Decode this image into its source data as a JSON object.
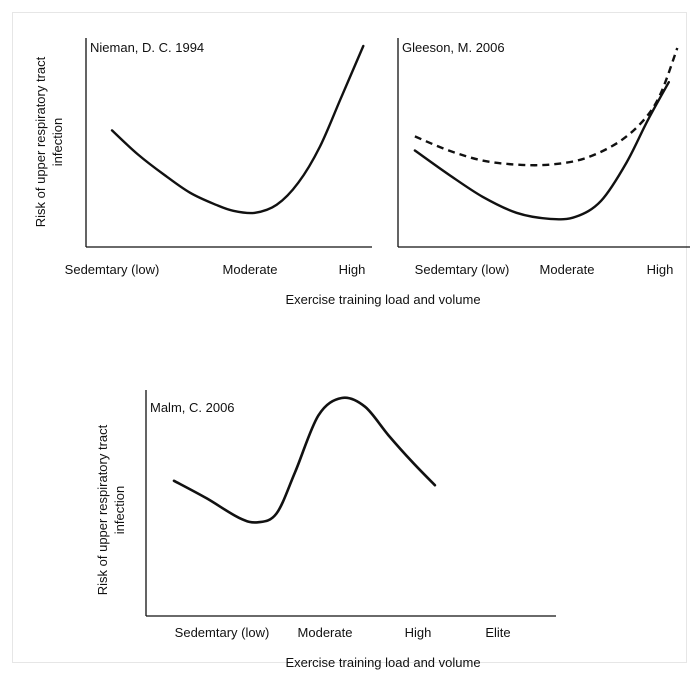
{
  "figure": {
    "shared_xlabel_top": "Exercise training load and volume",
    "ylabel_top": [
      "Risk of upper respiratory tract",
      "infection"
    ]
  },
  "chart_data": [
    {
      "type": "line",
      "title": "Nieman, D. C. 1994",
      "xlabel": "Exercise training load and volume",
      "ylabel": "Risk of upper respiratory tract infection",
      "categories": [
        "Sedemtary (low)",
        "Moderate",
        "High"
      ],
      "ylim": [
        0,
        10
      ],
      "grid": false,
      "series": [
        {
          "style": "solid",
          "x": [
            0.3,
            0.6,
            0.9,
            1.2,
            1.5,
            1.7,
            1.95,
            2.2,
            2.45,
            2.7,
            2.95,
            3.2
          ],
          "y": [
            5.8,
            4.6,
            3.6,
            2.7,
            2.1,
            1.8,
            1.7,
            2.1,
            3.2,
            5.0,
            7.5,
            10.0
          ]
        }
      ]
    },
    {
      "type": "line",
      "title": "Gleeson, M. 2006",
      "xlabel": "Exercise training load and volume",
      "ylabel": "",
      "categories": [
        "Sedemtary (low)",
        "Moderate",
        "High"
      ],
      "ylim": [
        0,
        10
      ],
      "grid": false,
      "series": [
        {
          "style": "solid",
          "x": [
            0.2,
            0.6,
            1.0,
            1.4,
            1.8,
            2.1,
            2.4,
            2.7,
            2.95,
            3.2
          ],
          "y": [
            4.8,
            3.6,
            2.5,
            1.7,
            1.4,
            1.5,
            2.3,
            4.2,
            6.3,
            8.2
          ]
        },
        {
          "style": "dashed",
          "x": [
            0.2,
            0.6,
            1.0,
            1.4,
            1.8,
            2.2,
            2.6,
            2.9,
            3.1,
            3.3
          ],
          "y": [
            5.5,
            4.8,
            4.3,
            4.1,
            4.1,
            4.4,
            5.2,
            6.3,
            7.6,
            9.9
          ]
        }
      ]
    },
    {
      "type": "line",
      "title": "Malm, C. 2006",
      "xlabel": "Exercise training load and volume",
      "ylabel": "Risk of upper respiratory tract infection",
      "categories": [
        "Sedemtary (low)",
        "Moderate",
        "High",
        "Elite"
      ],
      "ylim": [
        0,
        10
      ],
      "grid": false,
      "series": [
        {
          "style": "solid",
          "x": [
            0.3,
            0.65,
            1.0,
            1.2,
            1.4,
            1.6,
            1.85,
            2.1,
            2.35,
            2.6,
            2.85,
            3.1
          ],
          "y": [
            6.2,
            5.4,
            4.5,
            4.3,
            4.7,
            6.6,
            9.2,
            10.0,
            9.6,
            8.3,
            7.1,
            6.0
          ]
        }
      ]
    }
  ]
}
